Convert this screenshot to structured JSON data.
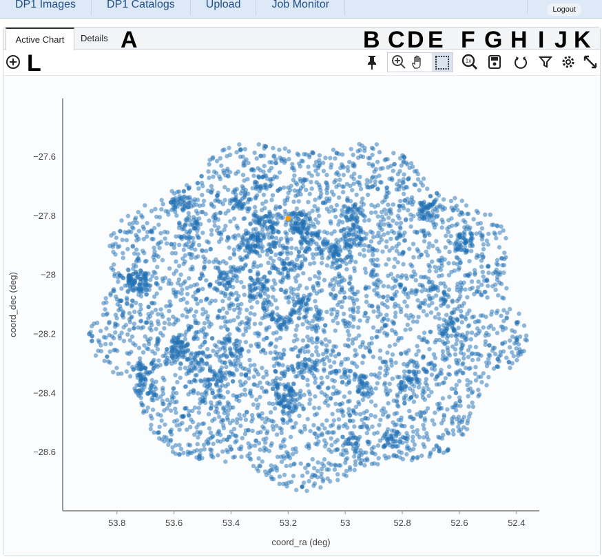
{
  "nav": {
    "tabs": [
      "DP1 Images",
      "DP1 Catalogs",
      "Upload",
      "Job Monitor"
    ],
    "logout": "Logout"
  },
  "panel": {
    "tabs": [
      "Active Chart",
      "Details"
    ]
  },
  "annotations": {
    "A": "A",
    "B": "B",
    "C": "C",
    "D": "D",
    "E": "E",
    "F": "F",
    "G": "G",
    "H": "H",
    "I": "I",
    "J": "J",
    "K": "K",
    "L": "L"
  },
  "toolbar": {
    "icons": [
      "add-chart-icon",
      "pin-icon",
      "zoom-icon",
      "pan-icon",
      "select-icon",
      "zoom-1x-icon",
      "save-icon",
      "restore-icon",
      "filter-icon",
      "settings-icon",
      "expand-icon"
    ],
    "zoom_1x": "1x"
  },
  "chart_data": {
    "type": "scatter",
    "xlabel": "coord_ra (deg)",
    "ylabel": "coord_dec (deg)",
    "xlim": [
      53.99,
      52.32
    ],
    "ylim": [
      -28.8,
      -27.404
    ],
    "x_reversed": true,
    "xticks": [
      "53.8",
      "53.6",
      "53.4",
      "53.2",
      "53",
      "52.8",
      "52.6",
      "52.4"
    ],
    "yticks": [
      "-27.6",
      "-27.8",
      "-28",
      "-28.2",
      "-28.4",
      "-28.6"
    ],
    "point_color": "#1f6fb4",
    "highlight_color": "#ff9900",
    "highlighted_point": {
      "x": 53.2,
      "y": -27.81
    },
    "distribution": {
      "center": [
        53.13,
        -28.13
      ],
      "ra_extent": [
        53.9,
        52.42
      ],
      "dec_extent": [
        -27.57,
        -28.72
      ]
    },
    "grid": false
  }
}
